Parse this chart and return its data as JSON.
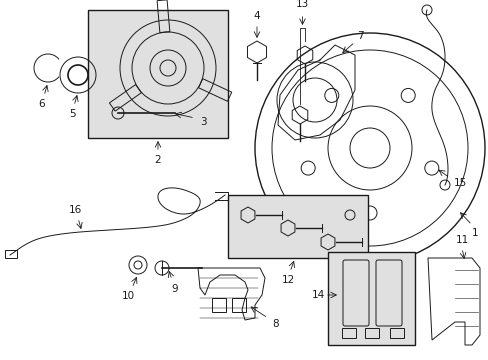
{
  "bg_color": "#ffffff",
  "line_color": "#1a1a1a",
  "box_fill": "#e0e0e0",
  "figsize": [
    4.89,
    3.6
  ],
  "dpi": 100
}
